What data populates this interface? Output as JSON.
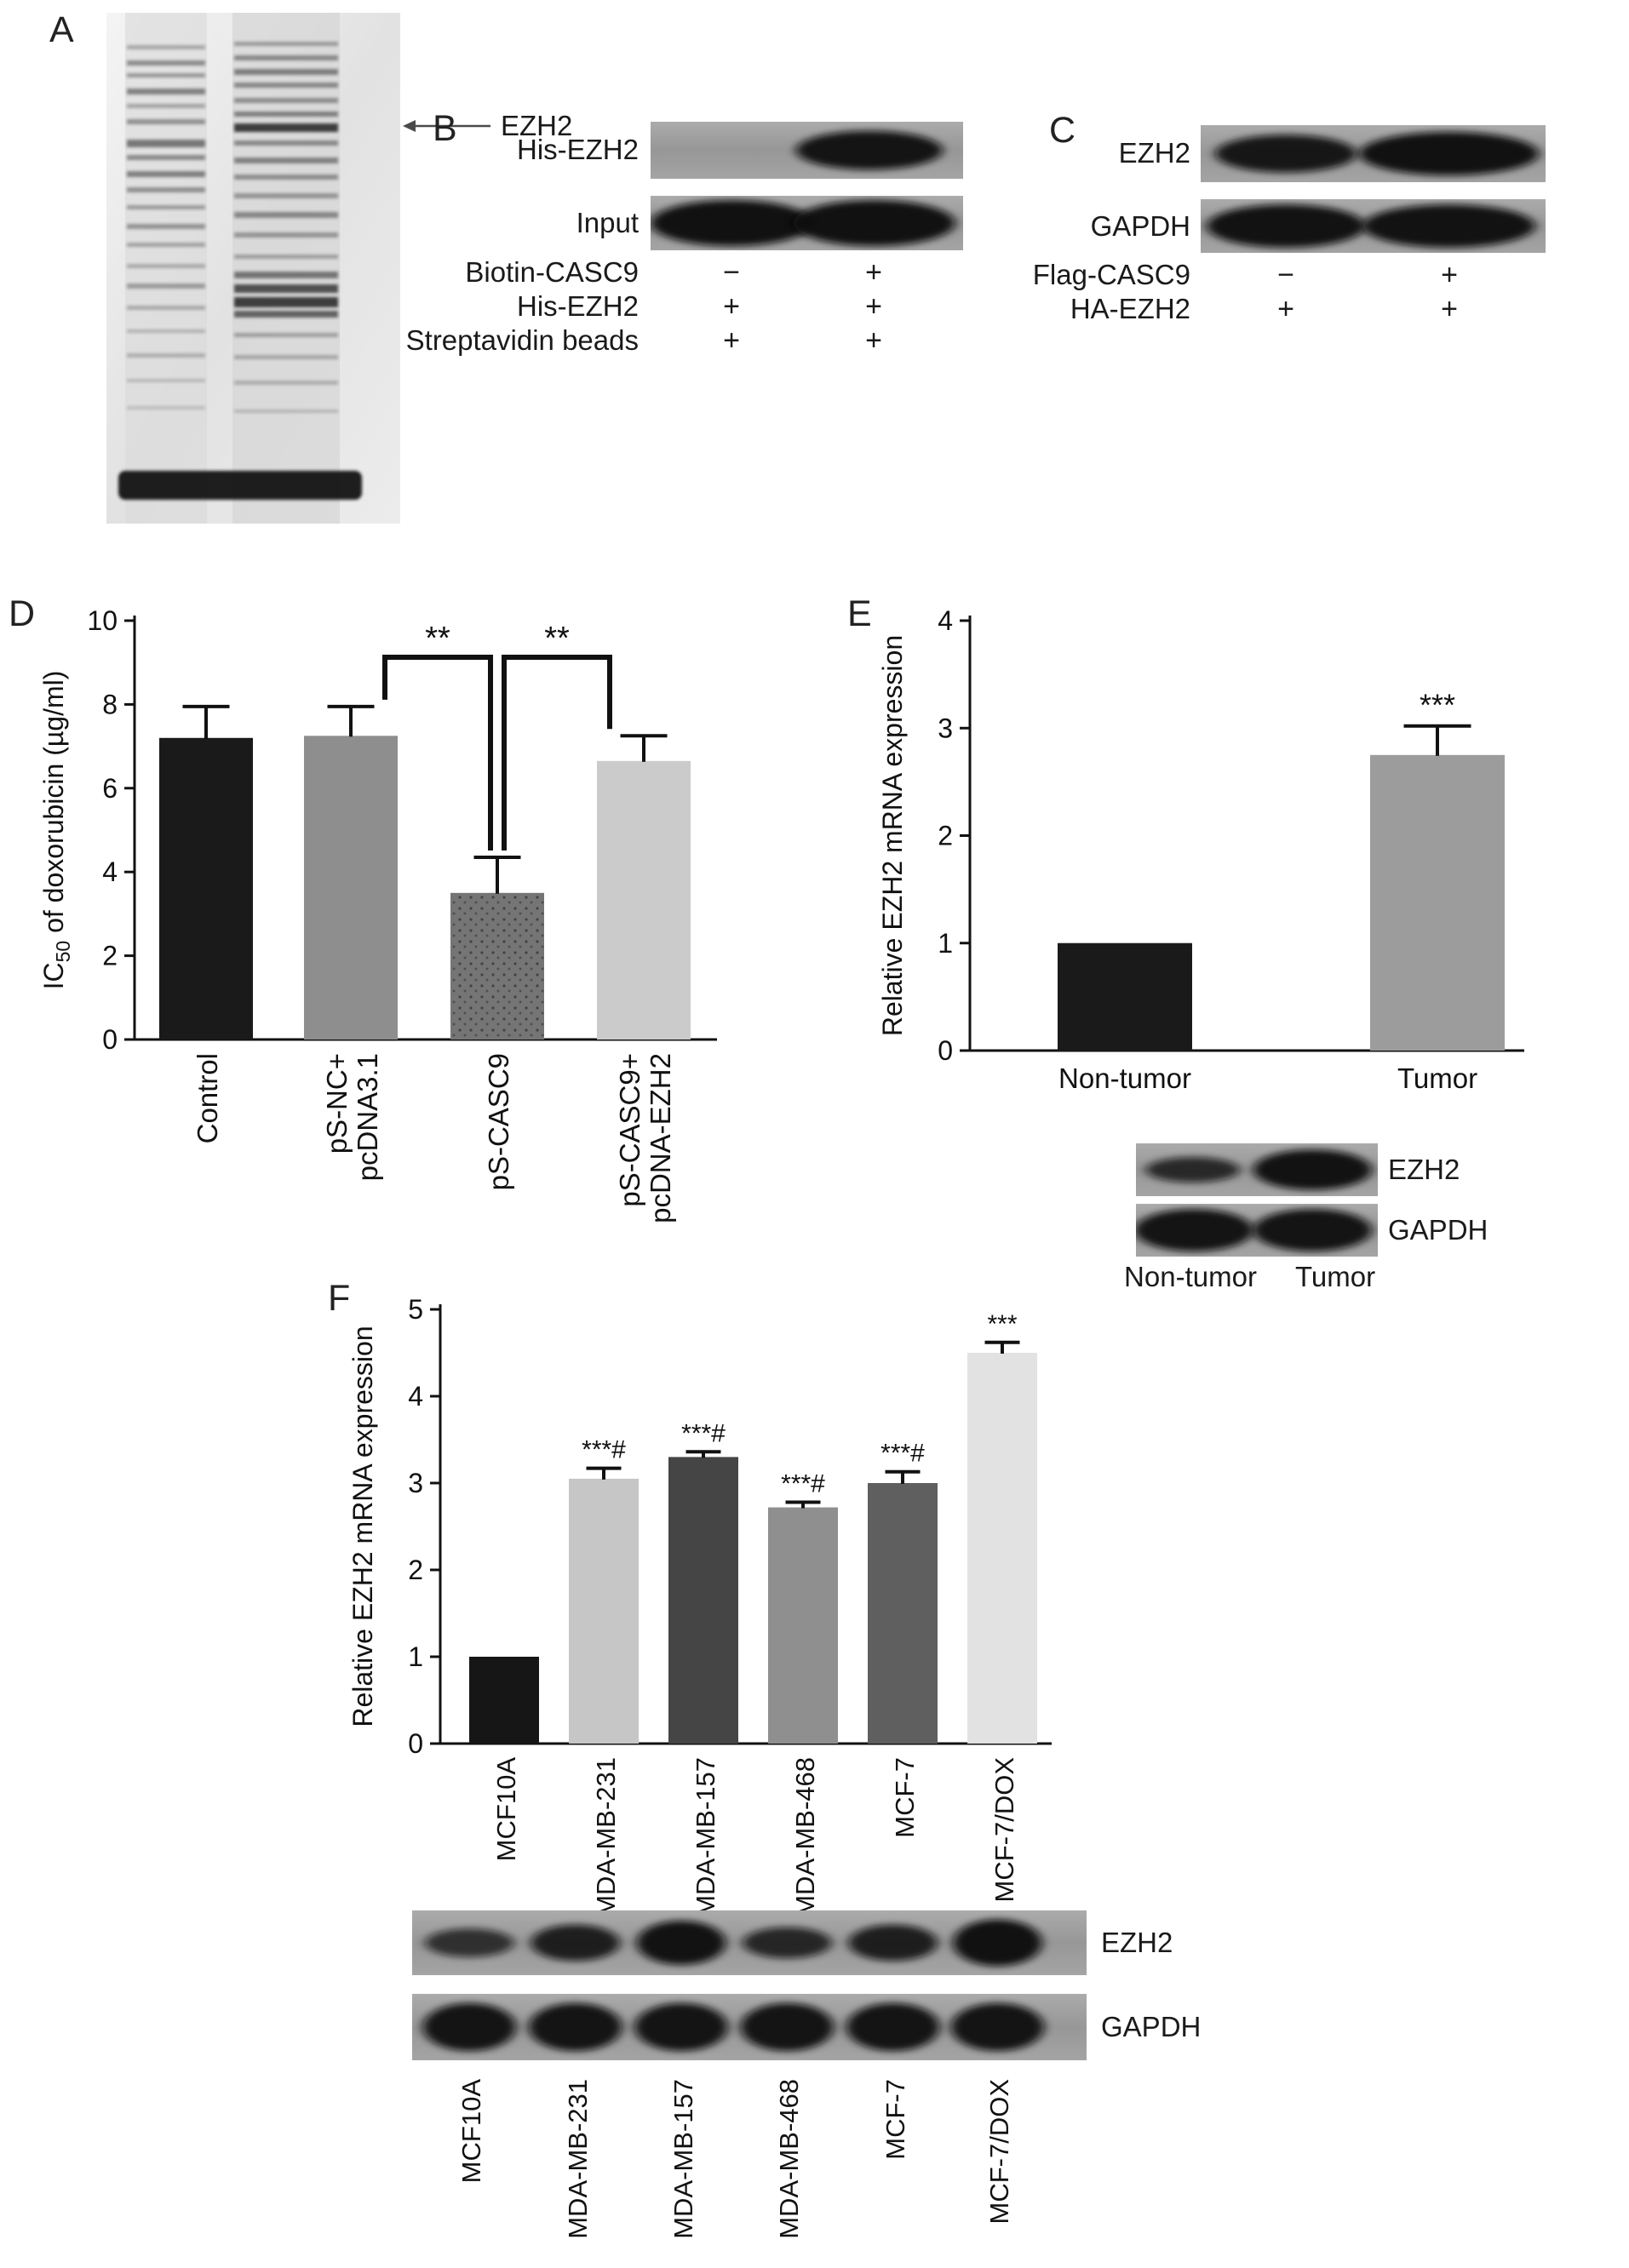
{
  "panels": {
    "A": {
      "label": "A",
      "band_annotation": "EZH2"
    },
    "B": {
      "label": "B",
      "blot_rows": [
        {
          "name": "His-EZH2"
        },
        {
          "name": "Input"
        }
      ],
      "conditions": [
        {
          "name": "Biotin-CASC9",
          "values": [
            "−",
            "+"
          ]
        },
        {
          "name": "His-EZH2",
          "values": [
            "+",
            "+"
          ]
        },
        {
          "name": "Streptavidin beads",
          "values": [
            "+",
            "+"
          ]
        }
      ]
    },
    "C": {
      "label": "C",
      "blot_rows": [
        {
          "name": "EZH2"
        },
        {
          "name": "GAPDH"
        }
      ],
      "conditions": [
        {
          "name": "Flag-CASC9",
          "values": [
            "−",
            "+"
          ]
        },
        {
          "name": "HA-EZH2",
          "values": [
            "+",
            "+"
          ]
        }
      ]
    },
    "D": {
      "label": "D"
    },
    "E": {
      "label": "E",
      "blot_rows": [
        {
          "name": "EZH2"
        },
        {
          "name": "GAPDH"
        }
      ],
      "lane_labels": [
        "Non-tumor",
        "Tumor"
      ]
    },
    "F": {
      "label": "F",
      "blot_rows": [
        {
          "name": "EZH2"
        },
        {
          "name": "GAPDH"
        }
      ],
      "lane_labels": [
        "MCF10A",
        "MDA-MB-231",
        "MDA-MB-157",
        "MDA-MB-468",
        "MCF-7",
        "MCF-7/DOX"
      ]
    }
  },
  "chart_data": [
    {
      "id": "D",
      "type": "bar",
      "categories": [
        "Control",
        "pS-NC+\npcDNA3.1",
        "pS-CASC9",
        "pS-CASC9+\npcDNA-EZH2"
      ],
      "values": [
        7.2,
        7.25,
        3.5,
        6.65
      ],
      "errors": [
        0.75,
        0.7,
        0.85,
        0.6
      ],
      "bar_colors": [
        "#1a1a1a",
        "#8e8e8e",
        "#757575",
        "#cbcbcb"
      ],
      "title": "",
      "xlabel": "",
      "ylabel": "IC50 of doxorubicin (µg/ml)",
      "ylabel_parts": [
        {
          "text": "IC"
        },
        {
          "text": "50",
          "sub": true
        },
        {
          "text": " of doxorubicin (µg/ml)",
          "after_sub": true
        }
      ],
      "ylim": [
        0,
        10
      ],
      "yticks": [
        0,
        2,
        4,
        6,
        8,
        10
      ],
      "grid": false,
      "significance_brackets": [
        {
          "from": 1,
          "to": 2,
          "label": "**"
        },
        {
          "from": 2,
          "to": 3,
          "label": "**"
        }
      ]
    },
    {
      "id": "E",
      "type": "bar",
      "categories": [
        "Non-tumor",
        "Tumor"
      ],
      "values": [
        1.0,
        2.75
      ],
      "errors": [
        0,
        0.27
      ],
      "bar_colors": [
        "#1a1a1a",
        "#9c9c9c"
      ],
      "title": "",
      "xlabel": "",
      "ylabel": "Relative EZH2 mRNA expression",
      "ylim": [
        0,
        4
      ],
      "yticks": [
        0,
        1,
        2,
        3,
        4
      ],
      "grid": false,
      "sig_labels": [
        "",
        "***"
      ]
    },
    {
      "id": "F",
      "type": "bar",
      "categories": [
        "MCF10A",
        "MDA-MB-231",
        "MDA-MB-157",
        "MDA-MB-468",
        "MCF-7",
        "MCF-7/DOX"
      ],
      "values": [
        1.0,
        3.05,
        3.3,
        2.72,
        3.0,
        4.5
      ],
      "errors": [
        0,
        0.12,
        0.06,
        0.06,
        0.13,
        0.12
      ],
      "bar_colors": [
        "#161616",
        "#c6c6c6",
        "#454545",
        "#8f8f8f",
        "#5f5f5f",
        "#e2e2e2"
      ],
      "title": "",
      "xlabel": "",
      "ylabel": "Relative EZH2 mRNA expression",
      "ylim": [
        0,
        5
      ],
      "yticks": [
        0,
        1,
        2,
        3,
        4,
        5
      ],
      "grid": false,
      "sig_labels": [
        "",
        "***#",
        "***#",
        "***#",
        "***#",
        "***"
      ]
    }
  ]
}
